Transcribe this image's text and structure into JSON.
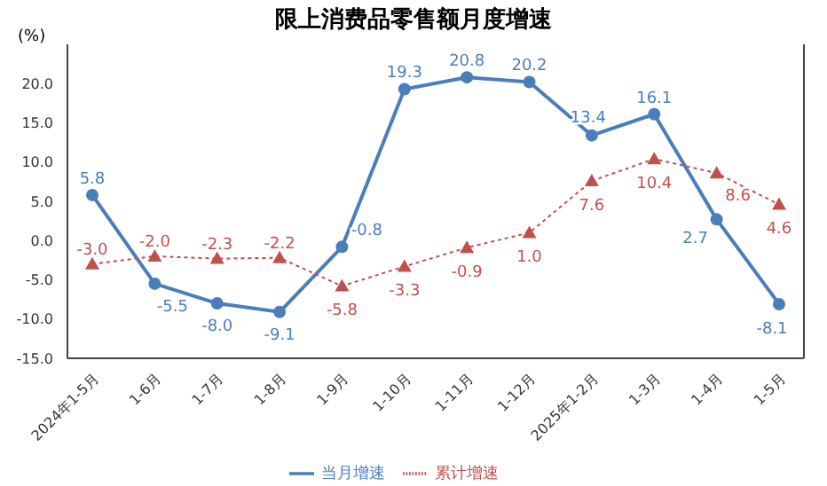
{
  "chart_data": {
    "type": "line",
    "title": "限上消费品零售额月度增速",
    "ylabel": "(%)",
    "categories": [
      "2024年1-5月",
      "1-6月",
      "1-7月",
      "1-8月",
      "1-9月",
      "1-10月",
      "1-11月",
      "1-12月",
      "2025年1-2月",
      "1-3月",
      "1-4月",
      "1-5月"
    ],
    "series": [
      {
        "name": "当月增速",
        "color": "#4a7ebb",
        "marker": "circle",
        "line_style": "solid",
        "values": [
          5.8,
          -5.5,
          -8.0,
          -9.1,
          -0.8,
          19.3,
          20.8,
          20.2,
          13.4,
          16.1,
          2.7,
          -8.1
        ],
        "value_labels": [
          "5.8",
          "-5.5",
          "-8.0",
          "-9.1",
          "-0.8",
          "19.3",
          "20.8",
          "20.2",
          "13.4",
          "16.1",
          "2.7",
          "-8.1"
        ]
      },
      {
        "name": "累计增速",
        "color": "#c0504d",
        "marker": "triangle",
        "line_style": "dotted",
        "values": [
          -3.0,
          -2.0,
          -2.3,
          -2.2,
          -5.8,
          -3.3,
          -0.9,
          1.0,
          7.6,
          10.4,
          8.6,
          4.6
        ],
        "value_labels": [
          "-3.0",
          "-2.0",
          "-2.3",
          "-2.2",
          "-5.8",
          "-3.3",
          "-0.9",
          "1.0",
          "7.6",
          "10.4",
          "8.6",
          "4.6"
        ]
      }
    ],
    "ylim": [
      -15,
      25
    ],
    "yticks": [
      {
        "value": -15,
        "label": "-15.0"
      },
      {
        "value": -10,
        "label": "-10.0"
      },
      {
        "value": -5,
        "label": "-5.0"
      },
      {
        "value": 0,
        "label": "0.0"
      },
      {
        "value": 5,
        "label": "5.0"
      },
      {
        "value": 10,
        "label": "10.0"
      },
      {
        "value": 15,
        "label": "15.0"
      },
      {
        "value": 20,
        "label": "20.0"
      }
    ],
    "grid": false,
    "legend": "bottom"
  }
}
